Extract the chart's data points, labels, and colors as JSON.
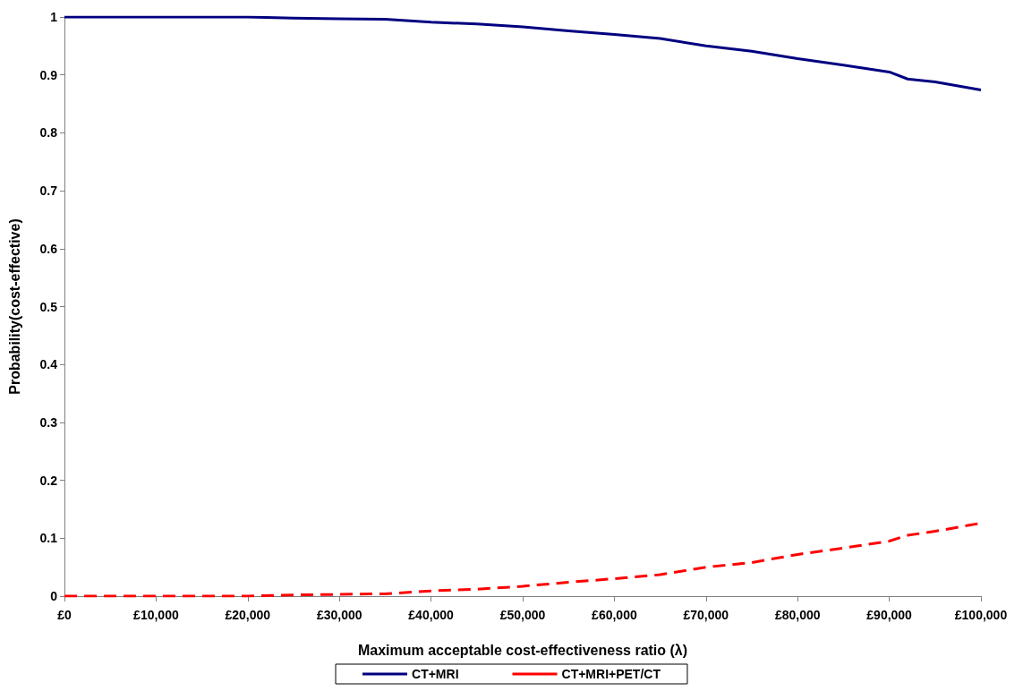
{
  "chart_data": {
    "type": "line",
    "xlabel": "Maximum acceptable cost-effectiveness ratio (λ)",
    "ylabel": "Probability(cost-effective)",
    "x": [
      0,
      5000,
      10000,
      15000,
      20000,
      25000,
      30000,
      35000,
      40000,
      45000,
      50000,
      55000,
      60000,
      65000,
      70000,
      75000,
      80000,
      85000,
      90000,
      92000,
      95000,
      100000
    ],
    "series": [
      {
        "name": "CT+MRI",
        "color": "#000080",
        "line_style": "solid",
        "values": [
          1.0,
          1.0,
          1.0,
          1.0,
          1.0,
          0.998,
          0.997,
          0.996,
          0.991,
          0.988,
          0.983,
          0.976,
          0.97,
          0.963,
          0.95,
          0.941,
          0.928,
          0.917,
          0.905,
          0.893,
          0.888,
          0.874
        ]
      },
      {
        "name": "CT+MRI+PET/CT",
        "color": "#ff0000",
        "line_style": "dashed",
        "values": [
          0.0,
          0.0,
          0.0,
          0.0,
          0.0,
          0.002,
          0.003,
          0.004,
          0.009,
          0.012,
          0.017,
          0.024,
          0.03,
          0.037,
          0.05,
          0.058,
          0.072,
          0.083,
          0.095,
          0.105,
          0.112,
          0.126
        ]
      }
    ],
    "xlim": [
      0,
      100000
    ],
    "xticks": [
      {
        "value": 0,
        "label": "£0"
      },
      {
        "value": 10000,
        "label": "£10,000"
      },
      {
        "value": 20000,
        "label": "£20,000"
      },
      {
        "value": 30000,
        "label": "£30,000"
      },
      {
        "value": 40000,
        "label": "£40,000"
      },
      {
        "value": 50000,
        "label": "£50,000"
      },
      {
        "value": 60000,
        "label": "£60,000"
      },
      {
        "value": 70000,
        "label": "£70,000"
      },
      {
        "value": 80000,
        "label": "£80,000"
      },
      {
        "value": 90000,
        "label": "£90,000"
      },
      {
        "value": 100000,
        "label": "£100,000"
      }
    ],
    "ylim": [
      0,
      1
    ],
    "yticks": [
      0,
      0.1,
      0.2,
      0.3,
      0.4,
      0.5,
      0.6,
      0.7,
      0.8,
      0.9,
      1
    ],
    "grid": false,
    "legend": "bottom",
    "marker": "none"
  }
}
